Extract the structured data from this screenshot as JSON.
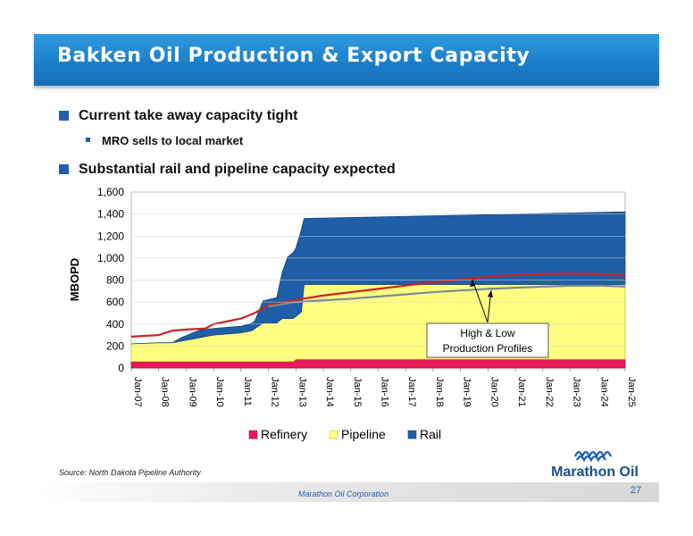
{
  "slide": {
    "title": "Bakken Oil Production & Export Capacity",
    "bullets": [
      {
        "text": "Current take away capacity tight",
        "level": 1
      },
      {
        "text": "MRO sells to local market",
        "level": 2
      },
      {
        "text": "Substantial rail and pipeline capacity expected",
        "level": 1
      }
    ],
    "source": "Source: North Dakota Pipeline Authority",
    "footer": "Marathon Oil Corporation",
    "page_number": "27",
    "logo_text": "Marathon Oil"
  },
  "colors": {
    "title_bar": "#1a7cc8",
    "refinery": "#e8195a",
    "pipeline": "#ffff80",
    "rail": "#1f5fa8",
    "high_profile": "#cc2222",
    "low_profile": "#7a8a9a"
  },
  "chart_data": {
    "type": "area",
    "ylabel": "MBOPD",
    "ylim": [
      0,
      1600
    ],
    "yticks": [
      "0",
      "200",
      "400",
      "600",
      "800",
      "1,000",
      "1,200",
      "1,400",
      "1,600"
    ],
    "xticks": [
      "Jan-07",
      "Jan-08",
      "Jan-09",
      "Jan-10",
      "Jan-11",
      "Jan-12",
      "Jan-13",
      "Jan-14",
      "Jan-15",
      "Jan-16",
      "Jan-17",
      "Jan-18",
      "Jan-19",
      "Jan-20",
      "Jan-21",
      "Jan-22",
      "Jan-23",
      "Jan-24",
      "Jan-25"
    ],
    "legend": [
      "Refinery",
      "Pipeline",
      "Rail"
    ],
    "legend_position": "bottom",
    "annotation": "High & Low\nProduction Profiles",
    "series": [
      {
        "name": "Refinery",
        "stack": true,
        "points": [
          [
            2007.0,
            60
          ],
          [
            2012.9,
            60
          ],
          [
            2013.0,
            80
          ],
          [
            2025.0,
            80
          ]
        ]
      },
      {
        "name": "Pipeline",
        "stack": true,
        "points": [
          [
            2007.0,
            160
          ],
          [
            2008.0,
            170
          ],
          [
            2008.5,
            170
          ],
          [
            2010.0,
            240
          ],
          [
            2011.0,
            260
          ],
          [
            2011.4,
            280
          ],
          [
            2011.8,
            350
          ],
          [
            2012.3,
            350
          ],
          [
            2012.5,
            390
          ],
          [
            2013.0,
            390
          ],
          [
            2013.2,
            430
          ],
          [
            2013.3,
            680
          ],
          [
            2025.0,
            680
          ]
        ]
      },
      {
        "name": "Rail",
        "stack": true,
        "points": [
          [
            2007.0,
            0
          ],
          [
            2008.5,
            0
          ],
          [
            2008.8,
            30
          ],
          [
            2009.5,
            70
          ],
          [
            2010.0,
            60
          ],
          [
            2011.0,
            60
          ],
          [
            2011.5,
            70
          ],
          [
            2011.8,
            200
          ],
          [
            2012.3,
            230
          ],
          [
            2012.5,
            420
          ],
          [
            2012.7,
            560
          ],
          [
            2013.0,
            620
          ],
          [
            2013.2,
            750
          ],
          [
            2013.3,
            600
          ],
          [
            2025.0,
            660
          ]
        ]
      }
    ],
    "profiles": [
      {
        "name": "High",
        "points": [
          [
            2007.0,
            285
          ],
          [
            2008.0,
            300
          ],
          [
            2008.5,
            340
          ],
          [
            2009.0,
            350
          ],
          [
            2009.7,
            360
          ],
          [
            2010.0,
            400
          ],
          [
            2011.0,
            450
          ],
          [
            2011.5,
            500
          ],
          [
            2012.0,
            570
          ],
          [
            2013.0,
            620
          ],
          [
            2014.0,
            660
          ],
          [
            2015.0,
            690
          ],
          [
            2016.0,
            720
          ],
          [
            2017.0,
            750
          ],
          [
            2018.0,
            780
          ],
          [
            2019.0,
            805
          ],
          [
            2020.0,
            830
          ],
          [
            2021.0,
            845
          ],
          [
            2022.0,
            855
          ],
          [
            2023.0,
            860
          ],
          [
            2024.0,
            855
          ],
          [
            2025.0,
            840
          ]
        ]
      },
      {
        "name": "Low",
        "points": [
          [
            2012.0,
            560
          ],
          [
            2013.0,
            600
          ],
          [
            2014.0,
            615
          ],
          [
            2015.0,
            630
          ],
          [
            2016.0,
            650
          ],
          [
            2017.0,
            670
          ],
          [
            2018.0,
            690
          ],
          [
            2019.0,
            705
          ],
          [
            2020.0,
            720
          ],
          [
            2021.0,
            730
          ],
          [
            2022.0,
            740
          ],
          [
            2023.0,
            748
          ],
          [
            2024.0,
            750
          ],
          [
            2025.0,
            740
          ]
        ]
      }
    ]
  }
}
